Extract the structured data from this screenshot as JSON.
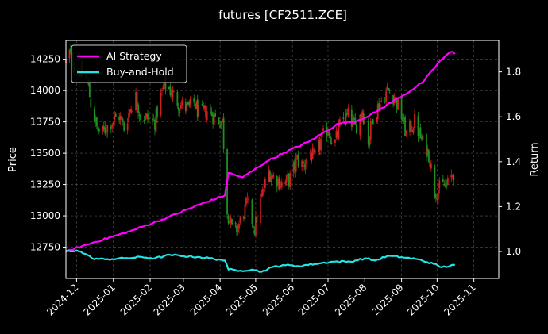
{
  "chart_data": {
    "type": "candlestick+line",
    "title": "futures [CF2511.ZCE]",
    "ylabel_left": "Price",
    "ylabel_right": "Return",
    "xlabel": "",
    "grid": true,
    "legend_placement": "top-left",
    "x_range": [
      "2024-11-22",
      "2025-11-22"
    ],
    "ylim_left": [
      12500,
      14400
    ],
    "ylim_right": [
      0.88,
      1.94
    ],
    "x_ticks": [
      "2024-12",
      "2025-01",
      "2025-02",
      "2025-03",
      "2025-04",
      "2025-05",
      "2025-06",
      "2025-07",
      "2025-08",
      "2025-09",
      "2025-10",
      "2025-11"
    ],
    "y_ticks_left": [
      "12750",
      "13000",
      "13250",
      "13500",
      "13750",
      "14000",
      "14250"
    ],
    "y_ticks_right": [
      "1.0",
      "1.2",
      "1.4",
      "1.6",
      "1.8"
    ],
    "colors": {
      "up": "#d11f1f",
      "down": "#1f8f1f",
      "ai": "#ff00ff",
      "bh": "#22e5e5",
      "grid": "#555555"
    },
    "price_path": [
      [
        "2024-11-22",
        14230
      ],
      [
        "2024-11-25",
        14300
      ],
      [
        "2024-11-29",
        14200
      ],
      [
        "2024-12-05",
        14150
      ],
      [
        "2024-12-10",
        14080
      ],
      [
        "2024-12-13",
        13900
      ],
      [
        "2024-12-18",
        13700
      ],
      [
        "2024-12-22",
        13650
      ],
      [
        "2024-12-30",
        13750
      ],
      [
        "2025-01-06",
        13800
      ],
      [
        "2025-01-10",
        13700
      ],
      [
        "2025-01-15",
        13850
      ],
      [
        "2025-01-20",
        13950
      ],
      [
        "2025-01-24",
        13800
      ],
      [
        "2025-02-05",
        13750
      ],
      [
        "2025-02-10",
        13950
      ],
      [
        "2025-02-13",
        14050
      ],
      [
        "2025-02-18",
        14000
      ],
      [
        "2025-02-25",
        13900
      ],
      [
        "2025-03-05",
        13850
      ],
      [
        "2025-03-10",
        13900
      ],
      [
        "2025-03-15",
        13800
      ],
      [
        "2025-03-22",
        13850
      ],
      [
        "2025-03-28",
        13780
      ],
      [
        "2025-04-03",
        13750
      ],
      [
        "2025-04-07",
        13050
      ],
      [
        "2025-04-12",
        12850
      ],
      [
        "2025-04-18",
        12950
      ],
      [
        "2025-04-24",
        13100
      ],
      [
        "2025-04-30",
        12900
      ],
      [
        "2025-05-06",
        13150
      ],
      [
        "2025-05-12",
        13350
      ],
      [
        "2025-05-18",
        13300
      ],
      [
        "2025-05-24",
        13250
      ],
      [
        "2025-05-30",
        13300
      ],
      [
        "2025-06-05",
        13450
      ],
      [
        "2025-06-10",
        13400
      ],
      [
        "2025-06-15",
        13500
      ],
      [
        "2025-06-20",
        13450
      ],
      [
        "2025-06-25",
        13600
      ],
      [
        "2025-07-01",
        13700
      ],
      [
        "2025-07-06",
        13550
      ],
      [
        "2025-07-12",
        13750
      ],
      [
        "2025-07-18",
        13800
      ],
      [
        "2025-07-24",
        13700
      ],
      [
        "2025-07-30",
        13850
      ],
      [
        "2025-08-04",
        13600
      ],
      [
        "2025-08-08",
        13800
      ],
      [
        "2025-08-14",
        13900
      ],
      [
        "2025-08-20",
        14000
      ],
      [
        "2025-08-26",
        13950
      ],
      [
        "2025-09-01",
        13800
      ],
      [
        "2025-09-05",
        13650
      ],
      [
        "2025-09-12",
        13750
      ],
      [
        "2025-09-18",
        13600
      ],
      [
        "2025-09-24",
        13500
      ],
      [
        "2025-09-29",
        13200
      ],
      [
        "2025-10-10",
        13250
      ],
      [
        "2025-10-15",
        13350
      ]
    ],
    "series": [
      {
        "name": "AI Strategy",
        "points": [
          [
            "2024-11-22",
            1.0
          ],
          [
            "2024-12-15",
            1.04
          ],
          [
            "2025-01-15",
            1.09
          ],
          [
            "2025-02-15",
            1.15
          ],
          [
            "2025-03-15",
            1.21
          ],
          [
            "2025-04-05",
            1.25
          ],
          [
            "2025-04-08",
            1.35
          ],
          [
            "2025-04-20",
            1.33
          ],
          [
            "2025-05-10",
            1.4
          ],
          [
            "2025-05-25",
            1.44
          ],
          [
            "2025-06-15",
            1.49
          ],
          [
            "2025-07-10",
            1.57
          ],
          [
            "2025-07-25",
            1.58
          ],
          [
            "2025-08-10",
            1.62
          ],
          [
            "2025-08-25",
            1.67
          ],
          [
            "2025-09-10",
            1.72
          ],
          [
            "2025-09-20",
            1.76
          ],
          [
            "2025-10-02",
            1.84
          ],
          [
            "2025-10-10",
            1.88
          ],
          [
            "2025-10-14",
            1.89
          ],
          [
            "2025-10-16",
            1.88
          ]
        ]
      },
      {
        "name": "Buy-and-Hold",
        "points": [
          [
            "2024-11-22",
            1.0
          ],
          [
            "2024-12-01",
            1.005
          ],
          [
            "2024-12-08",
            0.99
          ],
          [
            "2024-12-14",
            0.97
          ],
          [
            "2024-12-25",
            0.965
          ],
          [
            "2025-01-10",
            0.97
          ],
          [
            "2025-01-25",
            0.975
          ],
          [
            "2025-02-05",
            0.97
          ],
          [
            "2025-02-18",
            0.985
          ],
          [
            "2025-03-01",
            0.98
          ],
          [
            "2025-03-15",
            0.975
          ],
          [
            "2025-03-31",
            0.965
          ],
          [
            "2025-04-05",
            0.96
          ],
          [
            "2025-04-08",
            0.92
          ],
          [
            "2025-04-18",
            0.915
          ],
          [
            "2025-04-28",
            0.92
          ],
          [
            "2025-05-06",
            0.91
          ],
          [
            "2025-05-15",
            0.93
          ],
          [
            "2025-05-24",
            0.94
          ],
          [
            "2025-06-05",
            0.935
          ],
          [
            "2025-06-20",
            0.945
          ],
          [
            "2025-07-05",
            0.955
          ],
          [
            "2025-07-20",
            0.955
          ],
          [
            "2025-08-01",
            0.97
          ],
          [
            "2025-08-10",
            0.96
          ],
          [
            "2025-08-20",
            0.98
          ],
          [
            "2025-09-01",
            0.975
          ],
          [
            "2025-09-15",
            0.965
          ],
          [
            "2025-09-28",
            0.945
          ],
          [
            "2025-10-05",
            0.93
          ],
          [
            "2025-10-16",
            0.94
          ]
        ]
      }
    ]
  }
}
